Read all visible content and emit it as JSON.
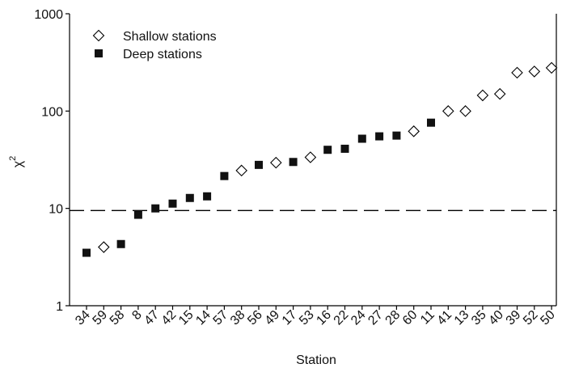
{
  "chart_data": {
    "type": "scatter",
    "xlabel": "Station",
    "ylabel": "χ",
    "ylabel_superscript": "2",
    "y_scale": "log",
    "ylim": [
      1,
      1000
    ],
    "y_ticks": [
      1,
      10,
      100,
      1000
    ],
    "y_tick_labels": [
      "1",
      "10",
      "100",
      "1000"
    ],
    "reference_line": {
      "y": 9.5,
      "style": "dashed"
    },
    "legend_position": "top-left",
    "grid": false,
    "categories": [
      "34",
      "59",
      "58",
      "8",
      "47",
      "42",
      "15",
      "14",
      "57",
      "38",
      "56",
      "49",
      "17",
      "53",
      "16",
      "22",
      "24",
      "27",
      "28",
      "60",
      "11",
      "41",
      "13",
      "35",
      "40",
      "39",
      "52",
      "50"
    ],
    "series": [
      {
        "name": "Shallow stations",
        "marker": "diamond-open",
        "color": "#000000",
        "points": [
          {
            "x": "59",
            "y": 4.0
          },
          {
            "x": "38",
            "y": 24.5
          },
          {
            "x": "49",
            "y": 29.5
          },
          {
            "x": "53",
            "y": 33.5
          },
          {
            "x": "60",
            "y": 62
          },
          {
            "x": "41",
            "y": 100
          },
          {
            "x": "13",
            "y": 100
          },
          {
            "x": "35",
            "y": 145
          },
          {
            "x": "40",
            "y": 150
          },
          {
            "x": "39",
            "y": 248
          },
          {
            "x": "52",
            "y": 255
          },
          {
            "x": "50",
            "y": 278
          }
        ]
      },
      {
        "name": "Deep stations",
        "marker": "square-filled",
        "color": "#111111",
        "points": [
          {
            "x": "34",
            "y": 3.5
          },
          {
            "x": "58",
            "y": 4.3
          },
          {
            "x": "8",
            "y": 8.6
          },
          {
            "x": "47",
            "y": 10.0
          },
          {
            "x": "42",
            "y": 11.2
          },
          {
            "x": "15",
            "y": 12.8
          },
          {
            "x": "14",
            "y": 13.3
          },
          {
            "x": "57",
            "y": 21.5
          },
          {
            "x": "56",
            "y": 28
          },
          {
            "x": "17",
            "y": 30
          },
          {
            "x": "16",
            "y": 40
          },
          {
            "x": "22",
            "y": 41
          },
          {
            "x": "24",
            "y": 52
          },
          {
            "x": "27",
            "y": 55
          },
          {
            "x": "28",
            "y": 56
          },
          {
            "x": "11",
            "y": 76
          }
        ]
      }
    ]
  }
}
